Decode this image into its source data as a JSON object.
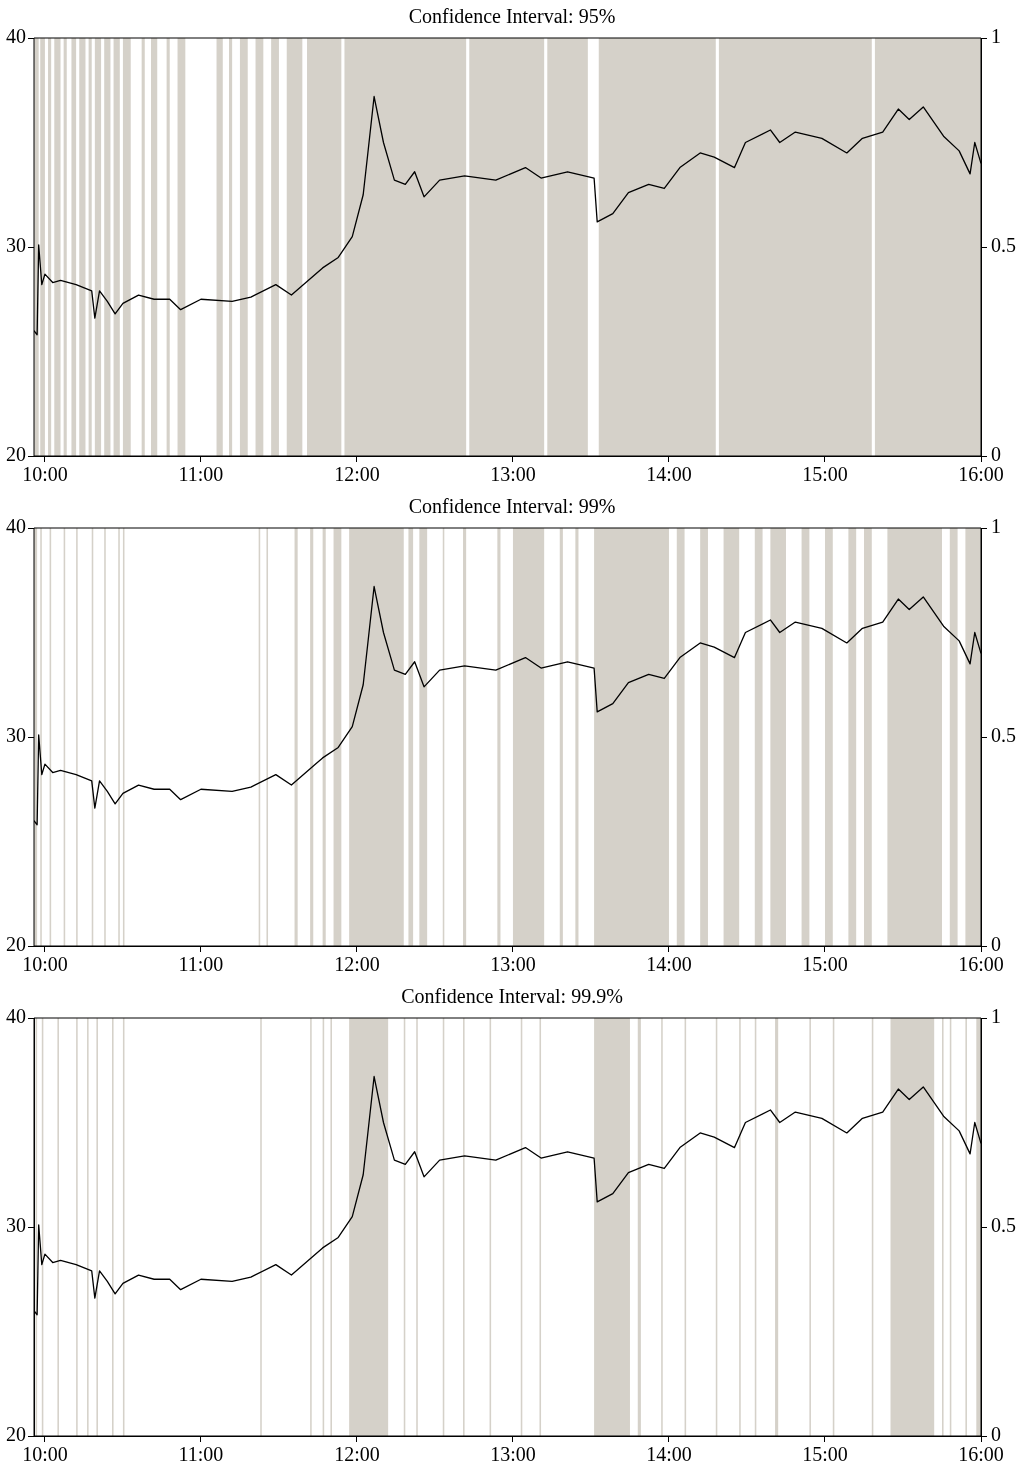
{
  "chart_data": [
    {
      "type": "line",
      "title": "Confidence Interval: 95%",
      "xlim": [
        9.93,
        16.0
      ],
      "xticks": [
        {
          "value": 10,
          "label": "10:00"
        },
        {
          "value": 11,
          "label": "11:00"
        },
        {
          "value": 12,
          "label": "12:00"
        },
        {
          "value": 13,
          "label": "13:00"
        },
        {
          "value": 14,
          "label": "14:00"
        },
        {
          "value": 15,
          "label": "15:00"
        },
        {
          "value": 16,
          "label": "16:00"
        }
      ],
      "ylim": [
        20,
        40
      ],
      "yticks": [
        20,
        30,
        40
      ],
      "y2lim": [
        0,
        1
      ],
      "y2ticks": [
        0,
        0.5,
        1
      ],
      "grid": false,
      "legend": false,
      "marker": "none",
      "line_style": "solid",
      "series": [
        {
          "color": "#000000",
          "x": [
            9.93,
            9.95,
            9.96,
            9.98,
            10.0,
            10.05,
            10.1,
            10.2,
            10.3,
            10.32,
            10.35,
            10.4,
            10.45,
            10.5,
            10.6,
            10.7,
            10.8,
            10.87,
            11.0,
            11.2,
            11.32,
            11.48,
            11.58,
            11.78,
            11.88,
            11.97,
            12.04,
            12.07,
            12.11,
            12.17,
            12.24,
            12.31,
            12.37,
            12.43,
            12.53,
            12.69,
            12.89,
            13.08,
            13.18,
            13.35,
            13.52,
            13.54,
            13.64,
            13.74,
            13.87,
            13.97,
            14.07,
            14.2,
            14.29,
            14.42,
            14.49,
            14.65,
            14.71,
            14.81,
            14.98,
            15.14,
            15.24,
            15.37,
            15.47,
            15.54,
            15.63,
            15.76,
            15.86,
            15.93,
            15.96,
            16.0
          ],
          "values": [
            26.0,
            25.8,
            30.1,
            28.2,
            28.7,
            28.3,
            28.4,
            28.2,
            27.9,
            26.6,
            27.9,
            27.4,
            26.8,
            27.3,
            27.7,
            27.5,
            27.5,
            27.0,
            27.5,
            27.4,
            27.6,
            28.2,
            27.7,
            29.0,
            29.5,
            30.5,
            32.5,
            34.5,
            37.2,
            35.0,
            33.2,
            33.0,
            33.6,
            32.4,
            33.2,
            33.4,
            33.2,
            33.8,
            33.3,
            33.6,
            33.3,
            31.2,
            31.6,
            32.6,
            33.0,
            32.8,
            33.8,
            34.5,
            34.3,
            33.8,
            35.0,
            35.6,
            35.0,
            35.5,
            35.2,
            34.5,
            35.2,
            35.5,
            36.6,
            36.1,
            36.7,
            35.3,
            34.6,
            33.5,
            35.0,
            34.0
          ]
        }
      ],
      "bands": [
        {
          "axis": "x",
          "from": 9.93,
          "to": 9.96,
          "color": "#d5d1c9"
        },
        {
          "axis": "x",
          "from": 9.97,
          "to": 10.0,
          "color": "#d5d1c9"
        },
        {
          "axis": "x",
          "from": 10.02,
          "to": 10.04,
          "color": "#d5d1c9"
        },
        {
          "axis": "x",
          "from": 10.06,
          "to": 10.1,
          "color": "#d5d1c9"
        },
        {
          "axis": "x",
          "from": 10.12,
          "to": 10.14,
          "color": "#d5d1c9"
        },
        {
          "axis": "x",
          "from": 10.17,
          "to": 10.2,
          "color": "#d5d1c9"
        },
        {
          "axis": "x",
          "from": 10.22,
          "to": 10.26,
          "color": "#d5d1c9"
        },
        {
          "axis": "x",
          "from": 10.28,
          "to": 10.3,
          "color": "#d5d1c9"
        },
        {
          "axis": "x",
          "from": 10.32,
          "to": 10.36,
          "color": "#d5d1c9"
        },
        {
          "axis": "x",
          "from": 10.38,
          "to": 10.42,
          "color": "#d5d1c9"
        },
        {
          "axis": "x",
          "from": 10.44,
          "to": 10.48,
          "color": "#d5d1c9"
        },
        {
          "axis": "x",
          "from": 10.5,
          "to": 10.55,
          "color": "#d5d1c9"
        },
        {
          "axis": "x",
          "from": 10.62,
          "to": 10.64,
          "color": "#d5d1c9"
        },
        {
          "axis": "x",
          "from": 10.68,
          "to": 10.72,
          "color": "#d5d1c9"
        },
        {
          "axis": "x",
          "from": 10.78,
          "to": 10.8,
          "color": "#d5d1c9"
        },
        {
          "axis": "x",
          "from": 10.85,
          "to": 10.9,
          "color": "#d5d1c9"
        },
        {
          "axis": "x",
          "from": 11.1,
          "to": 11.14,
          "color": "#d5d1c9"
        },
        {
          "axis": "x",
          "from": 11.18,
          "to": 11.2,
          "color": "#d5d1c9"
        },
        {
          "axis": "x",
          "from": 11.25,
          "to": 11.3,
          "color": "#d5d1c9"
        },
        {
          "axis": "x",
          "from": 11.35,
          "to": 11.4,
          "color": "#d5d1c9"
        },
        {
          "axis": "x",
          "from": 11.45,
          "to": 11.5,
          "color": "#d5d1c9"
        },
        {
          "axis": "x",
          "from": 11.55,
          "to": 11.65,
          "color": "#d5d1c9"
        },
        {
          "axis": "x",
          "from": 11.68,
          "to": 11.9,
          "color": "#d5d1c9"
        },
        {
          "axis": "x",
          "from": 11.92,
          "to": 12.7,
          "color": "#d5d1c9"
        },
        {
          "axis": "x",
          "from": 12.72,
          "to": 13.2,
          "color": "#d5d1c9"
        },
        {
          "axis": "x",
          "from": 13.22,
          "to": 13.48,
          "color": "#d5d1c9"
        },
        {
          "axis": "x",
          "from": 13.55,
          "to": 14.3,
          "color": "#d5d1c9"
        },
        {
          "axis": "x",
          "from": 14.32,
          "to": 15.3,
          "color": "#d5d1c9"
        },
        {
          "axis": "x",
          "from": 15.32,
          "to": 16.0,
          "color": "#d5d1c9"
        }
      ]
    },
    {
      "type": "line",
      "title": "Confidence Interval: 99%",
      "xlim": [
        9.93,
        16.0
      ],
      "xticks": [
        {
          "value": 10,
          "label": "10:00"
        },
        {
          "value": 11,
          "label": "11:00"
        },
        {
          "value": 12,
          "label": "12:00"
        },
        {
          "value": 13,
          "label": "13:00"
        },
        {
          "value": 14,
          "label": "14:00"
        },
        {
          "value": 15,
          "label": "15:00"
        },
        {
          "value": 16,
          "label": "16:00"
        }
      ],
      "ylim": [
        20,
        40
      ],
      "yticks": [
        20,
        30,
        40
      ],
      "y2lim": [
        0,
        1
      ],
      "y2ticks": [
        0,
        0.5,
        1
      ],
      "grid": false,
      "legend": false,
      "marker": "none",
      "line_style": "solid",
      "series": [
        {
          "color": "#000000",
          "x": [
            9.93,
            9.95,
            9.96,
            9.98,
            10.0,
            10.05,
            10.1,
            10.2,
            10.3,
            10.32,
            10.35,
            10.4,
            10.45,
            10.5,
            10.6,
            10.7,
            10.8,
            10.87,
            11.0,
            11.2,
            11.32,
            11.48,
            11.58,
            11.78,
            11.88,
            11.97,
            12.04,
            12.07,
            12.11,
            12.17,
            12.24,
            12.31,
            12.37,
            12.43,
            12.53,
            12.69,
            12.89,
            13.08,
            13.18,
            13.35,
            13.52,
            13.54,
            13.64,
            13.74,
            13.87,
            13.97,
            14.07,
            14.2,
            14.29,
            14.42,
            14.49,
            14.65,
            14.71,
            14.81,
            14.98,
            15.14,
            15.24,
            15.37,
            15.47,
            15.54,
            15.63,
            15.76,
            15.86,
            15.93,
            15.96,
            16.0
          ],
          "values": [
            26.0,
            25.8,
            30.1,
            28.2,
            28.7,
            28.3,
            28.4,
            28.2,
            27.9,
            26.6,
            27.9,
            27.4,
            26.8,
            27.3,
            27.7,
            27.5,
            27.5,
            27.0,
            27.5,
            27.4,
            27.6,
            28.2,
            27.7,
            29.0,
            29.5,
            30.5,
            32.5,
            34.5,
            37.2,
            35.0,
            33.2,
            33.0,
            33.6,
            32.4,
            33.2,
            33.4,
            33.2,
            33.8,
            33.3,
            33.6,
            33.3,
            31.2,
            31.6,
            32.6,
            33.0,
            32.8,
            33.8,
            34.5,
            34.3,
            33.8,
            35.0,
            35.6,
            35.0,
            35.5,
            35.2,
            34.5,
            35.2,
            35.5,
            36.6,
            36.1,
            36.7,
            35.3,
            34.6,
            33.5,
            35.0,
            34.0
          ]
        }
      ],
      "bands": [
        {
          "axis": "x",
          "from": 9.93,
          "to": 9.95,
          "color": "#d5d1c9"
        },
        {
          "axis": "x",
          "from": 9.97,
          "to": 9.98,
          "color": "#d5d1c9"
        },
        {
          "axis": "x",
          "from": 10.03,
          "to": 10.04,
          "color": "#d5d1c9"
        },
        {
          "axis": "x",
          "from": 10.12,
          "to": 10.13,
          "color": "#d5d1c9"
        },
        {
          "axis": "x",
          "from": 10.2,
          "to": 10.21,
          "color": "#d5d1c9"
        },
        {
          "axis": "x",
          "from": 10.3,
          "to": 10.31,
          "color": "#d5d1c9"
        },
        {
          "axis": "x",
          "from": 10.38,
          "to": 10.39,
          "color": "#d5d1c9"
        },
        {
          "axis": "x",
          "from": 10.47,
          "to": 10.48,
          "color": "#d5d1c9"
        },
        {
          "axis": "x",
          "from": 10.5,
          "to": 10.51,
          "color": "#d5d1c9"
        },
        {
          "axis": "x",
          "from": 11.37,
          "to": 11.38,
          "color": "#d5d1c9"
        },
        {
          "axis": "x",
          "from": 11.42,
          "to": 11.43,
          "color": "#d5d1c9"
        },
        {
          "axis": "x",
          "from": 11.6,
          "to": 11.62,
          "color": "#d5d1c9"
        },
        {
          "axis": "x",
          "from": 11.7,
          "to": 11.72,
          "color": "#d5d1c9"
        },
        {
          "axis": "x",
          "from": 11.78,
          "to": 11.8,
          "color": "#d5d1c9"
        },
        {
          "axis": "x",
          "from": 11.85,
          "to": 11.9,
          "color": "#d5d1c9"
        },
        {
          "axis": "x",
          "from": 11.95,
          "to": 12.3,
          "color": "#d5d1c9"
        },
        {
          "axis": "x",
          "from": 12.33,
          "to": 12.36,
          "color": "#d5d1c9"
        },
        {
          "axis": "x",
          "from": 12.4,
          "to": 12.45,
          "color": "#d5d1c9"
        },
        {
          "axis": "x",
          "from": 12.55,
          "to": 12.56,
          "color": "#d5d1c9"
        },
        {
          "axis": "x",
          "from": 12.68,
          "to": 12.7,
          "color": "#d5d1c9"
        },
        {
          "axis": "x",
          "from": 12.9,
          "to": 12.92,
          "color": "#d5d1c9"
        },
        {
          "axis": "x",
          "from": 13.0,
          "to": 13.2,
          "color": "#d5d1c9"
        },
        {
          "axis": "x",
          "from": 13.3,
          "to": 13.32,
          "color": "#d5d1c9"
        },
        {
          "axis": "x",
          "from": 13.4,
          "to": 13.42,
          "color": "#d5d1c9"
        },
        {
          "axis": "x",
          "from": 13.52,
          "to": 14.0,
          "color": "#d5d1c9"
        },
        {
          "axis": "x",
          "from": 14.05,
          "to": 14.1,
          "color": "#d5d1c9"
        },
        {
          "axis": "x",
          "from": 14.2,
          "to": 14.25,
          "color": "#d5d1c9"
        },
        {
          "axis": "x",
          "from": 14.35,
          "to": 14.45,
          "color": "#d5d1c9"
        },
        {
          "axis": "x",
          "from": 14.55,
          "to": 14.6,
          "color": "#d5d1c9"
        },
        {
          "axis": "x",
          "from": 14.65,
          "to": 14.75,
          "color": "#d5d1c9"
        },
        {
          "axis": "x",
          "from": 14.85,
          "to": 14.9,
          "color": "#d5d1c9"
        },
        {
          "axis": "x",
          "from": 15.0,
          "to": 15.05,
          "color": "#d5d1c9"
        },
        {
          "axis": "x",
          "from": 15.15,
          "to": 15.2,
          "color": "#d5d1c9"
        },
        {
          "axis": "x",
          "from": 15.25,
          "to": 15.3,
          "color": "#d5d1c9"
        },
        {
          "axis": "x",
          "from": 15.4,
          "to": 15.75,
          "color": "#d5d1c9"
        },
        {
          "axis": "x",
          "from": 15.8,
          "to": 15.85,
          "color": "#d5d1c9"
        },
        {
          "axis": "x",
          "from": 15.9,
          "to": 16.0,
          "color": "#d5d1c9"
        }
      ]
    },
    {
      "type": "line",
      "title": "Confidence Interval: 99.9%",
      "xlim": [
        9.93,
        16.0
      ],
      "xticks": [
        {
          "value": 10,
          "label": "10:00"
        },
        {
          "value": 11,
          "label": "11:00"
        },
        {
          "value": 12,
          "label": "12:00"
        },
        {
          "value": 13,
          "label": "13:00"
        },
        {
          "value": 14,
          "label": "14:00"
        },
        {
          "value": 15,
          "label": "15:00"
        },
        {
          "value": 16,
          "label": "16:00"
        }
      ],
      "ylim": [
        20,
        40
      ],
      "yticks": [
        20,
        30,
        40
      ],
      "y2lim": [
        0,
        1
      ],
      "y2ticks": [
        0,
        0.5,
        1
      ],
      "grid": false,
      "legend": false,
      "marker": "none",
      "line_style": "solid",
      "series": [
        {
          "color": "#000000",
          "x": [
            9.93,
            9.95,
            9.96,
            9.98,
            10.0,
            10.05,
            10.1,
            10.2,
            10.3,
            10.32,
            10.35,
            10.4,
            10.45,
            10.5,
            10.6,
            10.7,
            10.8,
            10.87,
            11.0,
            11.2,
            11.32,
            11.48,
            11.58,
            11.78,
            11.88,
            11.97,
            12.04,
            12.07,
            12.11,
            12.17,
            12.24,
            12.31,
            12.37,
            12.43,
            12.53,
            12.69,
            12.89,
            13.08,
            13.18,
            13.35,
            13.52,
            13.54,
            13.64,
            13.74,
            13.87,
            13.97,
            14.07,
            14.2,
            14.29,
            14.42,
            14.49,
            14.65,
            14.71,
            14.81,
            14.98,
            15.14,
            15.24,
            15.37,
            15.47,
            15.54,
            15.63,
            15.76,
            15.86,
            15.93,
            15.96,
            16.0
          ],
          "values": [
            26.0,
            25.8,
            30.1,
            28.2,
            28.7,
            28.3,
            28.4,
            28.2,
            27.9,
            26.6,
            27.9,
            27.4,
            26.8,
            27.3,
            27.7,
            27.5,
            27.5,
            27.0,
            27.5,
            27.4,
            27.6,
            28.2,
            27.7,
            29.0,
            29.5,
            30.5,
            32.5,
            34.5,
            37.2,
            35.0,
            33.2,
            33.0,
            33.6,
            32.4,
            33.2,
            33.4,
            33.2,
            33.8,
            33.3,
            33.6,
            33.3,
            31.2,
            31.6,
            32.6,
            33.0,
            32.8,
            33.8,
            34.5,
            34.3,
            33.8,
            35.0,
            35.6,
            35.0,
            35.5,
            35.2,
            34.5,
            35.2,
            35.5,
            36.6,
            36.1,
            36.7,
            35.3,
            34.6,
            33.5,
            35.0,
            34.0
          ]
        }
      ],
      "bands": [
        {
          "axis": "x",
          "from": 9.94,
          "to": 9.95,
          "color": "#d5d1c9"
        },
        {
          "axis": "x",
          "from": 9.98,
          "to": 9.99,
          "color": "#d5d1c9"
        },
        {
          "axis": "x",
          "from": 10.08,
          "to": 10.09,
          "color": "#d5d1c9"
        },
        {
          "axis": "x",
          "from": 10.2,
          "to": 10.21,
          "color": "#d5d1c9"
        },
        {
          "axis": "x",
          "from": 10.27,
          "to": 10.28,
          "color": "#d5d1c9"
        },
        {
          "axis": "x",
          "from": 10.33,
          "to": 10.34,
          "color": "#d5d1c9"
        },
        {
          "axis": "x",
          "from": 10.43,
          "to": 10.44,
          "color": "#d5d1c9"
        },
        {
          "axis": "x",
          "from": 10.5,
          "to": 10.51,
          "color": "#d5d1c9"
        },
        {
          "axis": "x",
          "from": 11.38,
          "to": 11.39,
          "color": "#d5d1c9"
        },
        {
          "axis": "x",
          "from": 11.7,
          "to": 11.71,
          "color": "#d5d1c9"
        },
        {
          "axis": "x",
          "from": 11.78,
          "to": 11.79,
          "color": "#d5d1c9"
        },
        {
          "axis": "x",
          "from": 11.83,
          "to": 11.84,
          "color": "#d5d1c9"
        },
        {
          "axis": "x",
          "from": 11.95,
          "to": 12.2,
          "color": "#d5d1c9"
        },
        {
          "axis": "x",
          "from": 12.3,
          "to": 12.31,
          "color": "#d5d1c9"
        },
        {
          "axis": "x",
          "from": 12.38,
          "to": 12.39,
          "color": "#d5d1c9"
        },
        {
          "axis": "x",
          "from": 12.55,
          "to": 12.56,
          "color": "#d5d1c9"
        },
        {
          "axis": "x",
          "from": 12.68,
          "to": 12.69,
          "color": "#d5d1c9"
        },
        {
          "axis": "x",
          "from": 12.85,
          "to": 12.86,
          "color": "#d5d1c9"
        },
        {
          "axis": "x",
          "from": 13.05,
          "to": 13.06,
          "color": "#d5d1c9"
        },
        {
          "axis": "x",
          "from": 13.17,
          "to": 13.18,
          "color": "#d5d1c9"
        },
        {
          "axis": "x",
          "from": 13.52,
          "to": 13.75,
          "color": "#d5d1c9"
        },
        {
          "axis": "x",
          "from": 13.8,
          "to": 13.82,
          "color": "#d5d1c9"
        },
        {
          "axis": "x",
          "from": 13.95,
          "to": 13.96,
          "color": "#d5d1c9"
        },
        {
          "axis": "x",
          "from": 14.1,
          "to": 14.11,
          "color": "#d5d1c9"
        },
        {
          "axis": "x",
          "from": 14.3,
          "to": 14.31,
          "color": "#d5d1c9"
        },
        {
          "axis": "x",
          "from": 14.45,
          "to": 14.46,
          "color": "#d5d1c9"
        },
        {
          "axis": "x",
          "from": 14.55,
          "to": 14.56,
          "color": "#d5d1c9"
        },
        {
          "axis": "x",
          "from": 14.68,
          "to": 14.7,
          "color": "#d5d1c9"
        },
        {
          "axis": "x",
          "from": 14.9,
          "to": 14.91,
          "color": "#d5d1c9"
        },
        {
          "axis": "x",
          "from": 15.05,
          "to": 15.06,
          "color": "#d5d1c9"
        },
        {
          "axis": "x",
          "from": 15.3,
          "to": 15.31,
          "color": "#d5d1c9"
        },
        {
          "axis": "x",
          "from": 15.42,
          "to": 15.7,
          "color": "#d5d1c9"
        },
        {
          "axis": "x",
          "from": 15.75,
          "to": 15.76,
          "color": "#d5d1c9"
        },
        {
          "axis": "x",
          "from": 15.8,
          "to": 15.81,
          "color": "#d5d1c9"
        },
        {
          "axis": "x",
          "from": 15.9,
          "to": 15.91,
          "color": "#d5d1c9"
        },
        {
          "axis": "x",
          "from": 15.97,
          "to": 16.0,
          "color": "#d5d1c9"
        }
      ]
    }
  ]
}
